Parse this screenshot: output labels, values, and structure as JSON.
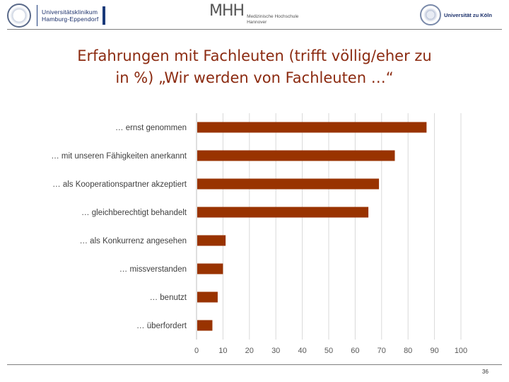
{
  "header": {
    "left_logo_lines": [
      "Universitätsklinikum",
      "Hamburg-Eppendorf"
    ],
    "mid_logo_mark": "MHH",
    "mid_logo_lines": [
      "Medizinische Hochschule",
      "Hannover"
    ],
    "right_logo_text": "Universität zu Köln"
  },
  "slide": {
    "title_line1": "Erfahrungen mit Fachleuten (trifft völlig/eher zu",
    "title_line2": "in %) „Wir werden von Fachleuten …“",
    "page_number": "36"
  },
  "colors": {
    "bar": "#993300",
    "title": "#8b2a10",
    "grid": "#d9d9d9",
    "rule": "#7f7f7f"
  },
  "chart_data": {
    "type": "bar",
    "orientation": "horizontal",
    "categories": [
      "… ernst genommen",
      "… mit unseren Fähigkeiten anerkannt",
      "… als Kooperationspartner akzeptiert",
      "… gleichberechtigt behandelt",
      "… als Konkurrenz angesehen",
      "… missverstanden",
      "… benutzt",
      "… überfordert"
    ],
    "values": [
      87,
      75,
      69,
      65,
      11,
      10,
      8,
      6
    ],
    "xlim": [
      0,
      100
    ],
    "xticks": [
      "0",
      "10",
      "20",
      "30",
      "40",
      "50",
      "60",
      "70",
      "80",
      "90",
      "100"
    ],
    "grid": true,
    "legend": "none"
  }
}
